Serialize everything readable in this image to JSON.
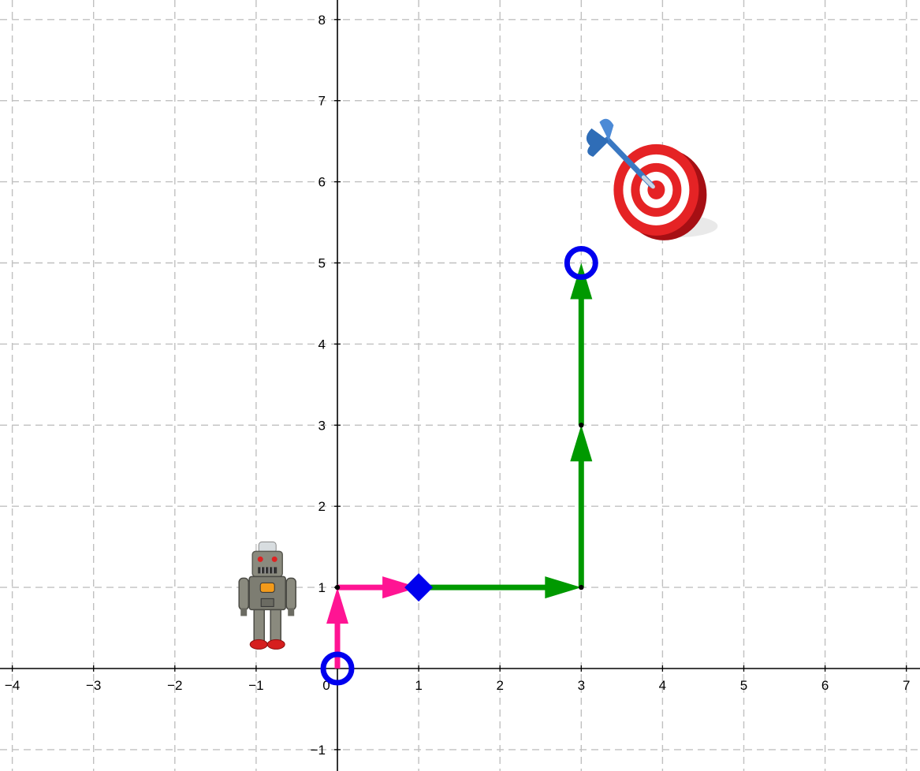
{
  "axes": {
    "x_range": [
      -4,
      7
    ],
    "y_range": [
      -1,
      8
    ],
    "x_ticks": [
      -4,
      -3,
      -2,
      -1,
      1,
      2,
      3,
      4,
      5,
      6,
      7
    ],
    "y_ticks": [
      -1,
      1,
      2,
      3,
      4,
      5,
      6,
      7,
      8
    ],
    "origin_label": "0",
    "grid": "dashed",
    "grid_color": "#c0c0c0",
    "axis_color": "#000000"
  },
  "path": {
    "pink_color": "#ff1493",
    "green_color": "#009900",
    "pink_arrows": [
      {
        "from": [
          0,
          0
        ],
        "to": [
          0,
          1
        ]
      },
      {
        "from": [
          0,
          1
        ],
        "to": [
          1,
          1
        ]
      }
    ],
    "green_arrows": [
      {
        "from": [
          1,
          1
        ],
        "to": [
          3,
          1
        ]
      },
      {
        "from": [
          3,
          1
        ],
        "to": [
          3,
          3
        ]
      },
      {
        "from": [
          3,
          3
        ],
        "to": [
          3,
          5
        ]
      }
    ],
    "dots": [
      [
        0,
        1
      ],
      [
        3,
        1
      ],
      [
        3,
        3
      ]
    ]
  },
  "markers": {
    "color": "#0000ee",
    "circles": [
      [
        0,
        0
      ],
      [
        3,
        5
      ]
    ],
    "diamond": [
      1,
      1
    ]
  },
  "images": {
    "robot": {
      "icon": "robot-icon",
      "at": [
        -0.9,
        0.9
      ]
    },
    "target": {
      "icon": "target-icon",
      "at": [
        4,
        5.9
      ]
    }
  }
}
